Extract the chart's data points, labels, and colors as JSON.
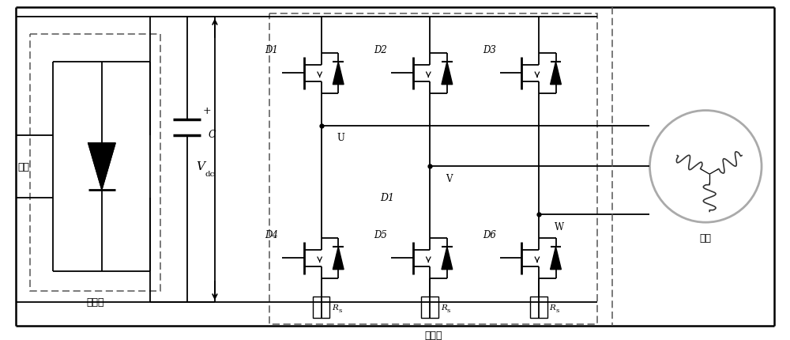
{
  "bg_color": "#ffffff",
  "line_color": "#000000",
  "label_rectifier": "整流器",
  "label_inverter": "逆变器",
  "label_motor": "电机",
  "label_mains": "市电",
  "label_vdc": "V",
  "label_vdc_sub": "dc",
  "label_C": "C",
  "label_U": "U",
  "label_V": "V",
  "label_W": "W",
  "label_D1": "D1",
  "label_D2": "D2",
  "label_D3": "D3",
  "label_D4": "D4",
  "label_D5": "D5",
  "label_D6": "D6",
  "label_D1_mid": "D1",
  "label_Rs": "R",
  "label_Rs_sub": "s",
  "figsize": [
    10.0,
    4.31
  ],
  "dpi": 100
}
